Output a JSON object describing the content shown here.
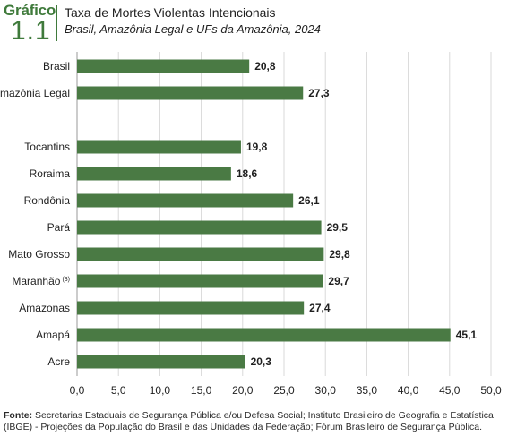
{
  "header": {
    "label": "Gráfico",
    "number": "1.1",
    "title": "Taxa de Mortes Violentas Intencionais",
    "subtitle": "Brasil, Amazônia Legal e UFs da Amazônia, 2024"
  },
  "chart_data": {
    "type": "bar",
    "orientation": "horizontal",
    "categories": [
      "Brasil",
      "Amazônia Legal",
      "Tocantins",
      "Roraima",
      "Rondônia",
      "Pará",
      "Mato Grosso",
      "Maranhão",
      "Amazonas",
      "Amapá",
      "Acre"
    ],
    "category_notes": {
      "Maranhão": "(3)"
    },
    "values": [
      20.8,
      27.3,
      19.8,
      18.6,
      26.1,
      29.5,
      29.8,
      29.7,
      27.4,
      45.1,
      20.3
    ],
    "value_labels": [
      "20,8",
      "27,3",
      "19,8",
      "18,6",
      "26,1",
      "29,5",
      "29,8",
      "29,7",
      "27,4",
      "45,1",
      "20,3"
    ],
    "gap_after_index": 1,
    "xlim": [
      0,
      50
    ],
    "xticks": [
      "0,0",
      "5,0",
      "10,0",
      "15,0",
      "20,0",
      "25,0",
      "30,0",
      "35,0",
      "40,0",
      "45,0",
      "50,0"
    ],
    "grid": "vertical",
    "bar_color": "#4a7a44"
  },
  "footer": {
    "source_label": "Fonte:",
    "source_text": "Secretarias Estaduais de Segurança Pública e/ou Defesa Social; Instituto Brasileiro de Geografia e Estatística (IBGE) - Projeções da População do Brasil e das Unidades da Federação; Fórum Brasileiro de Segurança Pública."
  }
}
